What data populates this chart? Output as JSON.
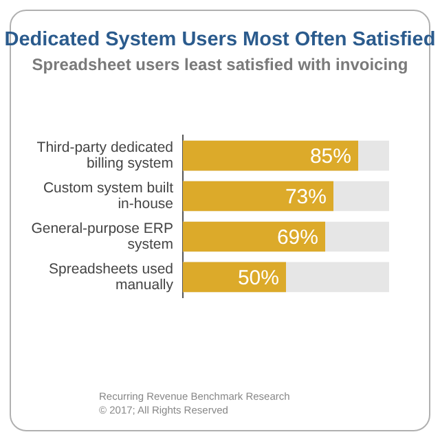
{
  "chart_data": {
    "type": "bar",
    "orientation": "horizontal",
    "title": "Dedicated System Users Most Often Satisfied",
    "subtitle": "Spreadsheet users least satisfied with invoicing",
    "categories": [
      "Third-party dedicated billing system",
      "Custom system built in-house",
      "General-purpose ERP system",
      "Spreadsheets used manually"
    ],
    "values": [
      85,
      73,
      69,
      50
    ],
    "color": "#dcaa2a",
    "value_labels": [
      "85%",
      "73%",
      "69%",
      "50%"
    ],
    "tick_labels": "y",
    "annotations": [
      "Recurring Revenue Benchmark Research",
      "© 2017; All Rights Reserved"
    ]
  }
}
